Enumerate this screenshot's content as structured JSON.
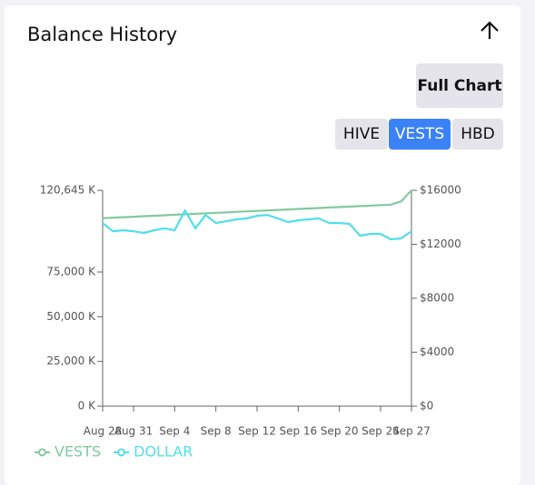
{
  "header": {
    "title": "Balance History"
  },
  "buttons": {
    "full_chart": "Full Chart",
    "tabs": [
      "HIVE",
      "VESTS",
      "HBD"
    ],
    "active": 1
  },
  "chart_data": {
    "type": "line",
    "categories": [
      "Aug 28",
      null,
      null,
      "Aug 31",
      null,
      null,
      null,
      "Sep 4",
      null,
      null,
      null,
      "Sep 8",
      null,
      null,
      null,
      "Sep 12",
      null,
      null,
      null,
      "Sep 16",
      null,
      null,
      null,
      "Sep 20",
      null,
      null,
      null,
      "Sep 24",
      null,
      null,
      "Sep 27"
    ],
    "series": [
      {
        "name": "VESTS",
        "color": "#82ca9d",
        "axis": "y",
        "values": [
          105100,
          105370,
          105640,
          105910,
          106180,
          106450,
          106720,
          106990,
          107260,
          107530,
          107800,
          108070,
          108340,
          108610,
          108880,
          109150,
          109420,
          109690,
          109960,
          110230,
          110500,
          110770,
          111040,
          111310,
          111580,
          111850,
          112120,
          112390,
          112660,
          114500,
          120645
        ]
      },
      {
        "name": "DOLLAR",
        "color": "#4fe0e8",
        "axis": "y2",
        "values": [
          13580,
          12970,
          13040,
          12970,
          12840,
          13040,
          13180,
          13040,
          14520,
          13180,
          14180,
          13580,
          13710,
          13850,
          13920,
          14120,
          14180,
          13920,
          13650,
          13780,
          13850,
          13920,
          13580,
          13580,
          13510,
          12640,
          12770,
          12770,
          12370,
          12440,
          12970
        ]
      }
    ],
    "ylim": [
      0,
      120645
    ],
    "yticks": [
      {
        "value": 0,
        "label": "0 K"
      },
      {
        "value": 25000,
        "label": "25,000 K"
      },
      {
        "value": 50000,
        "label": "50,000 K"
      },
      {
        "value": 75000,
        "label": "75,000 K"
      },
      {
        "value": 120645,
        "label": "120,645 K"
      }
    ],
    "y2lim": [
      0,
      16000
    ],
    "y2ticks": [
      {
        "value": 0,
        "label": "$0"
      },
      {
        "value": 4000,
        "label": "$4000"
      },
      {
        "value": 8000,
        "label": "$8000"
      },
      {
        "value": 12000,
        "label": "$12000"
      },
      {
        "value": 16000,
        "label": "$16000"
      }
    ],
    "legend": "bottom-left"
  }
}
